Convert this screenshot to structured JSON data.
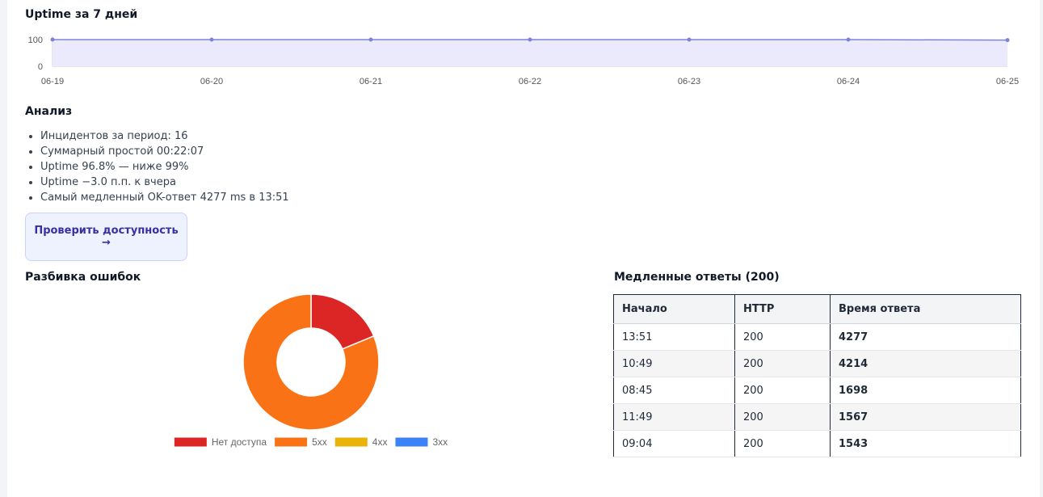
{
  "uptime": {
    "title": "Uptime за 7 дней",
    "y_ticks": [
      "100",
      "0"
    ],
    "x_ticks": [
      "06-19",
      "06-20",
      "06-21",
      "06-22",
      "06-23",
      "06-24",
      "06-25"
    ]
  },
  "chart_data": [
    {
      "type": "area",
      "title": "Uptime за 7 дней",
      "x": [
        "06-19",
        "06-20",
        "06-21",
        "06-22",
        "06-23",
        "06-24",
        "06-25"
      ],
      "values": [
        100,
        100,
        100,
        100,
        100,
        100,
        98
      ],
      "ylim": [
        0,
        100
      ],
      "color": "#7c83db",
      "fill": "#ebeafc"
    },
    {
      "type": "pie",
      "title": "Разбивка ошибок",
      "donut": true,
      "labels": [
        "Нет доступа",
        "5xx",
        "4xx",
        "3xx"
      ],
      "values": [
        3,
        13,
        0,
        0
      ],
      "colors": [
        "#dc2626",
        "#f97316",
        "#eab308",
        "#3b82f6"
      ],
      "legend": "bottom"
    }
  ],
  "analysis": {
    "title": "Анализ",
    "items": [
      "Инцидентов за период: 16",
      "Суммарный простой 00:22:07",
      "Uptime 96.8% — ниже 99%",
      "Uptime −3.0 п.п. к вчера",
      "Самый медленный OK-ответ 4277 ms в 13:51"
    ],
    "button": "Проверить доступность →"
  },
  "errors": {
    "title": "Разбивка ошибок"
  },
  "slow": {
    "title": "Медленные ответы (200)",
    "headers": [
      "Начало",
      "HTTP",
      "Время ответа"
    ],
    "rows": [
      [
        "13:51",
        "200",
        "4277"
      ],
      [
        "10:49",
        "200",
        "4214"
      ],
      [
        "08:45",
        "200",
        "1698"
      ],
      [
        "11:49",
        "200",
        "1567"
      ],
      [
        "09:04",
        "200",
        "1543"
      ]
    ]
  }
}
